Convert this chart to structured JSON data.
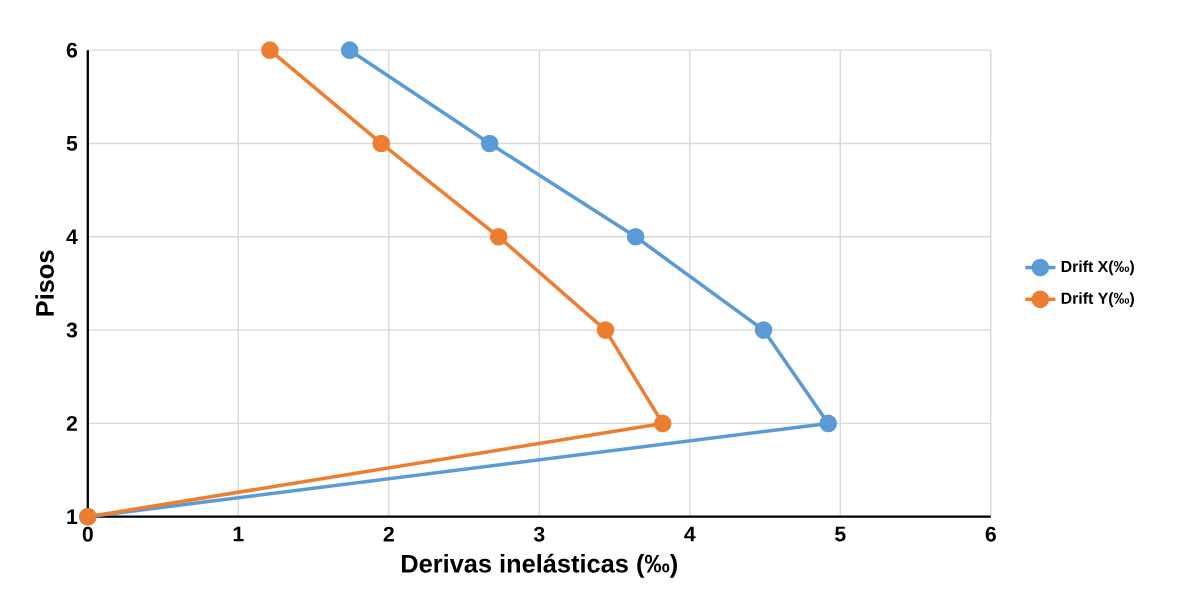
{
  "chart_data": {
    "type": "line",
    "xlabel": "Derivas  inelásticas (‰)",
    "ylabel": "Pisos",
    "xlim": [
      0,
      6
    ],
    "xticks": [
      0,
      1,
      2,
      3,
      4,
      5,
      6
    ],
    "ylim": [
      1,
      6
    ],
    "yticks": [
      1,
      2,
      3,
      4,
      5,
      6
    ],
    "grid": true,
    "legend": "right",
    "marker": "circle",
    "line_style": "solid",
    "series": [
      {
        "name": "Drift X(‰)",
        "color": "#5b9bd5",
        "x": [
          0,
          4.92,
          4.49,
          3.64,
          2.67,
          1.74
        ],
        "values": [
          1,
          2,
          3,
          4,
          5,
          6
        ]
      },
      {
        "name": "Drift Y(‰)",
        "color": "#ed7d31",
        "x": [
          0,
          3.82,
          3.44,
          2.73,
          1.95,
          1.21
        ],
        "values": [
          1,
          2,
          3,
          4,
          5,
          6
        ]
      }
    ]
  }
}
